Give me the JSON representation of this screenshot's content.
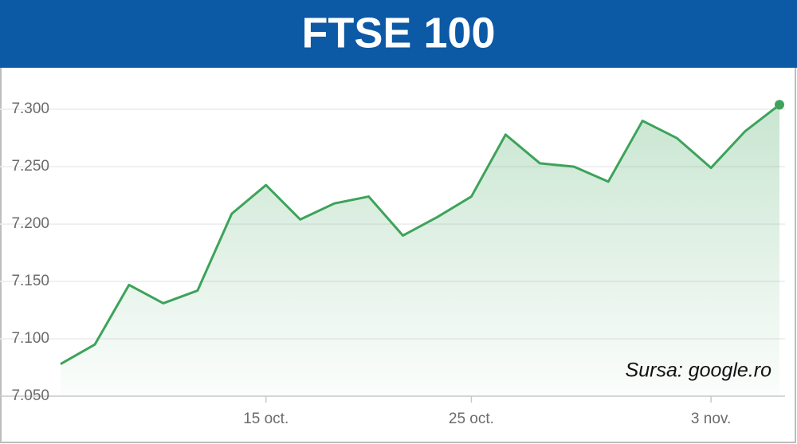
{
  "chart_data": {
    "type": "line",
    "title": "FTSE 100",
    "annotation": "Sursa: google.ro",
    "categories": [
      null,
      null,
      null,
      null,
      null,
      null,
      "15 oct.",
      null,
      null,
      null,
      null,
      null,
      "25 oct.",
      null,
      null,
      null,
      null,
      null,
      null,
      "3 nov.",
      null,
      null
    ],
    "values": [
      7078,
      7095,
      7147,
      7131,
      7142,
      7209,
      7234,
      7204,
      7218,
      7224,
      7190,
      7206,
      7224,
      7278,
      7253,
      7250,
      7237,
      7290,
      7275,
      7249,
      7281,
      7304
    ],
    "color": "#3da35a",
    "ylim": [
      7050,
      7330
    ],
    "yticks": [
      {
        "value": 7050,
        "label": "7.050"
      },
      {
        "value": 7100,
        "label": "7.100"
      },
      {
        "value": 7150,
        "label": "7.150"
      },
      {
        "value": 7200,
        "label": "7.200"
      },
      {
        "value": 7250,
        "label": "7.250"
      },
      {
        "value": 7300,
        "label": "7.300"
      }
    ],
    "grid": true
  }
}
